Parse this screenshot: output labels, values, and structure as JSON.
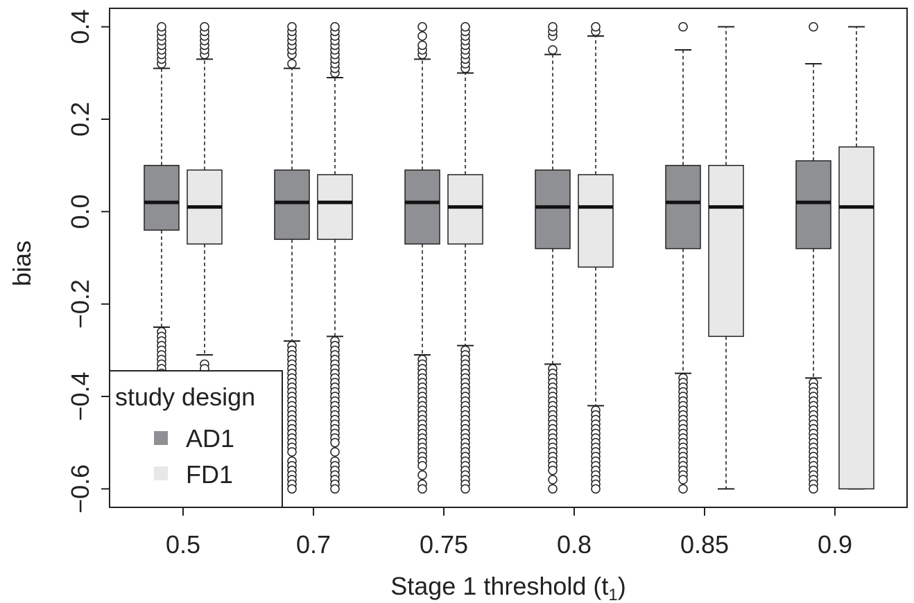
{
  "chart_data": {
    "type": "boxplot",
    "xlabel": "Stage 1 threshold (t",
    "xlabel_subscript": "1",
    "xlabel_suffix": ")",
    "ylabel": "bias",
    "ylim": [
      -0.64,
      0.44
    ],
    "yticks": [
      0.4,
      0.2,
      0.0,
      -0.2,
      -0.4,
      -0.6
    ],
    "ytick_labels": [
      "0.4",
      "0.2",
      "0.0",
      "−0.2",
      "−0.4",
      "−0.6"
    ],
    "categories": [
      "0.5",
      "0.7",
      "0.75",
      "0.8",
      "0.85",
      "0.9"
    ],
    "legend": {
      "title": "study design",
      "position": "bottom-left",
      "entries": [
        {
          "name": "AD1",
          "color": "#8f9093"
        },
        {
          "name": "FD1",
          "color": "#e8e8e8"
        }
      ]
    },
    "series": [
      {
        "name": "AD1",
        "color": "#8f9093",
        "boxes": [
          {
            "q1": -0.04,
            "median": 0.02,
            "q3": 0.1,
            "whisker_low": -0.25,
            "whisker_high": 0.31,
            "outliers_high": [
              0.32,
              0.33,
              0.34,
              0.35,
              0.36,
              0.37,
              0.38,
              0.39,
              0.4
            ],
            "outliers_low": [
              -0.26,
              -0.27,
              -0.28,
              -0.29,
              -0.3,
              -0.31,
              -0.32,
              -0.33,
              -0.34,
              -0.35
            ]
          },
          {
            "q1": -0.06,
            "median": 0.02,
            "q3": 0.09,
            "whisker_low": -0.28,
            "whisker_high": 0.31,
            "outliers_high": [
              0.32,
              0.34,
              0.35,
              0.36,
              0.37,
              0.38,
              0.39,
              0.4
            ],
            "outliers_low": [
              -0.29,
              -0.3,
              -0.31,
              -0.32,
              -0.33,
              -0.34,
              -0.35,
              -0.36,
              -0.37,
              -0.38,
              -0.39,
              -0.4,
              -0.41,
              -0.42,
              -0.43,
              -0.44,
              -0.45,
              -0.46,
              -0.47,
              -0.48,
              -0.49,
              -0.5,
              -0.51,
              -0.52,
              -0.54,
              -0.55,
              -0.56,
              -0.57,
              -0.58,
              -0.59,
              -0.6
            ]
          },
          {
            "q1": -0.07,
            "median": 0.02,
            "q3": 0.09,
            "whisker_low": -0.31,
            "whisker_high": 0.33,
            "outliers_high": [
              0.34,
              0.35,
              0.36,
              0.38,
              0.4
            ],
            "outliers_low": [
              -0.32,
              -0.33,
              -0.34,
              -0.35,
              -0.36,
              -0.37,
              -0.38,
              -0.39,
              -0.4,
              -0.41,
              -0.42,
              -0.43,
              -0.44,
              -0.45,
              -0.46,
              -0.47,
              -0.48,
              -0.49,
              -0.5,
              -0.51,
              -0.52,
              -0.53,
              -0.54,
              -0.55,
              -0.57,
              -0.59,
              -0.6
            ]
          },
          {
            "q1": -0.08,
            "median": 0.01,
            "q3": 0.09,
            "whisker_low": -0.33,
            "whisker_high": 0.34,
            "outliers_high": [
              0.35,
              0.38,
              0.39,
              0.4
            ],
            "outliers_low": [
              -0.34,
              -0.35,
              -0.36,
              -0.37,
              -0.38,
              -0.39,
              -0.4,
              -0.41,
              -0.42,
              -0.43,
              -0.44,
              -0.45,
              -0.46,
              -0.47,
              -0.48,
              -0.49,
              -0.5,
              -0.51,
              -0.52,
              -0.53,
              -0.54,
              -0.55,
              -0.56,
              -0.58,
              -0.6
            ]
          },
          {
            "q1": -0.08,
            "median": 0.02,
            "q3": 0.1,
            "whisker_low": -0.35,
            "whisker_high": 0.35,
            "outliers_high": [
              0.4
            ],
            "outliers_low": [
              -0.36,
              -0.37,
              -0.38,
              -0.39,
              -0.4,
              -0.41,
              -0.42,
              -0.43,
              -0.44,
              -0.45,
              -0.46,
              -0.47,
              -0.48,
              -0.49,
              -0.5,
              -0.51,
              -0.52,
              -0.53,
              -0.54,
              -0.55,
              -0.56,
              -0.57,
              -0.58,
              -0.6
            ]
          },
          {
            "q1": -0.08,
            "median": 0.02,
            "q3": 0.11,
            "whisker_low": -0.36,
            "whisker_high": 0.32,
            "outliers_high": [
              0.4
            ],
            "outliers_low": [
              -0.37,
              -0.38,
              -0.39,
              -0.4,
              -0.41,
              -0.42,
              -0.43,
              -0.44,
              -0.45,
              -0.46,
              -0.47,
              -0.48,
              -0.49,
              -0.5,
              -0.51,
              -0.52,
              -0.53,
              -0.54,
              -0.55,
              -0.56,
              -0.57,
              -0.58,
              -0.59,
              -0.6
            ]
          }
        ]
      },
      {
        "name": "FD1",
        "color": "#e8e8e8",
        "boxes": [
          {
            "q1": -0.07,
            "median": 0.01,
            "q3": 0.09,
            "whisker_low": -0.31,
            "whisker_high": 0.33,
            "outliers_high": [
              0.34,
              0.35,
              0.36,
              0.37,
              0.38,
              0.39,
              0.4
            ],
            "outliers_low": [
              -0.33,
              -0.34
            ]
          },
          {
            "q1": -0.06,
            "median": 0.02,
            "q3": 0.08,
            "whisker_low": -0.27,
            "whisker_high": 0.29,
            "outliers_high": [
              0.3,
              0.31,
              0.32,
              0.33,
              0.34,
              0.35,
              0.36,
              0.37,
              0.38,
              0.39,
              0.4
            ],
            "outliers_low": [
              -0.28,
              -0.29,
              -0.3,
              -0.31,
              -0.32,
              -0.33,
              -0.34,
              -0.35,
              -0.36,
              -0.37,
              -0.38,
              -0.39,
              -0.4,
              -0.41,
              -0.42,
              -0.43,
              -0.44,
              -0.45,
              -0.46,
              -0.47,
              -0.48,
              -0.49,
              -0.5,
              -0.52,
              -0.54,
              -0.55,
              -0.56,
              -0.57,
              -0.58,
              -0.59,
              -0.6
            ]
          },
          {
            "q1": -0.07,
            "median": 0.01,
            "q3": 0.08,
            "whisker_low": -0.29,
            "whisker_high": 0.3,
            "outliers_high": [
              0.31,
              0.32,
              0.33,
              0.34,
              0.35,
              0.36,
              0.37,
              0.38,
              0.39,
              0.4
            ],
            "outliers_low": [
              -0.3,
              -0.31,
              -0.32,
              -0.33,
              -0.34,
              -0.35,
              -0.36,
              -0.37,
              -0.38,
              -0.39,
              -0.4,
              -0.41,
              -0.42,
              -0.43,
              -0.44,
              -0.45,
              -0.46,
              -0.47,
              -0.48,
              -0.49,
              -0.5,
              -0.51,
              -0.52,
              -0.53,
              -0.54,
              -0.55,
              -0.56,
              -0.57,
              -0.58,
              -0.59,
              -0.6
            ]
          },
          {
            "q1": -0.12,
            "median": 0.01,
            "q3": 0.08,
            "whisker_low": -0.42,
            "whisker_high": 0.38,
            "outliers_high": [
              0.39,
              0.4
            ],
            "outliers_low": [
              -0.43,
              -0.44,
              -0.45,
              -0.46,
              -0.47,
              -0.48,
              -0.49,
              -0.5,
              -0.51,
              -0.52,
              -0.53,
              -0.54,
              -0.55,
              -0.56,
              -0.57,
              -0.58,
              -0.59,
              -0.6
            ]
          },
          {
            "q1": -0.27,
            "median": 0.01,
            "q3": 0.1,
            "whisker_low": -0.6,
            "whisker_high": 0.4,
            "outliers_high": [],
            "outliers_low": []
          },
          {
            "q1": -0.6,
            "median": 0.01,
            "q3": 0.14,
            "whisker_low": -0.6,
            "whisker_high": 0.4,
            "outliers_high": [],
            "outliers_low": []
          }
        ]
      }
    ]
  }
}
